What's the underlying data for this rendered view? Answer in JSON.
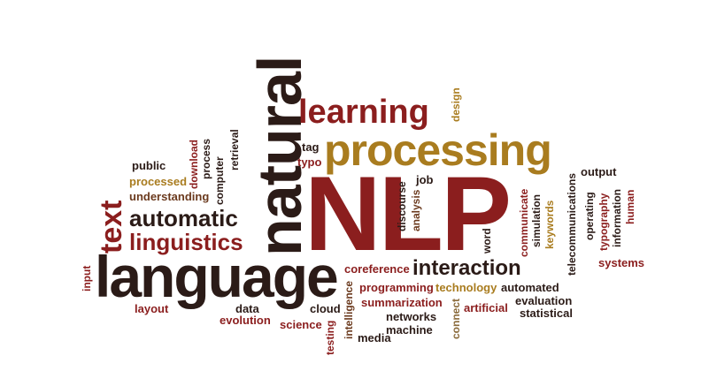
{
  "colors": {
    "dark_brown": "#2b1b17",
    "red": "#8b1e1e",
    "gold": "#a97c1f",
    "brown": "#6b3a1e",
    "tan": "#8a6a3a",
    "gray": "#555555"
  },
  "words": {
    "nlp": "NLP",
    "natural": "natural",
    "language": "language",
    "processing": "processing",
    "learning": "learning",
    "text": "text",
    "automatic": "automatic",
    "linguistics": "linguistics",
    "interaction": "interaction",
    "public": "public",
    "processed": "processed",
    "understanding": "understanding",
    "download": "download",
    "process": "process",
    "computer": "computer",
    "retrieval": "retrieval",
    "tag": "tag",
    "typo": "typo",
    "design": "design",
    "job": "job",
    "discourse": "discourse",
    "analysis": "analysis",
    "word": "word",
    "coreference": "coreference",
    "programming": "programming",
    "technology": "technology",
    "automated": "automated",
    "summarization": "summarization",
    "evaluation": "evaluation",
    "artificial": "artificial",
    "statistical": "statistical",
    "networks": "networks",
    "machine": "machine",
    "connect": "connect",
    "testing": "testing",
    "intelligence": "intelligence",
    "cloud": "cloud",
    "science": "science",
    "media": "media",
    "data": "data",
    "evolution": "evolution",
    "layout": "layout",
    "input": "input",
    "communicate": "communicate",
    "simulation": "simulation",
    "keywords": "keywords",
    "telecommunications": "telecommunications",
    "operating": "operating",
    "typography": "typography",
    "information": "information",
    "human": "human",
    "output": "output",
    "systems": "systems"
  }
}
